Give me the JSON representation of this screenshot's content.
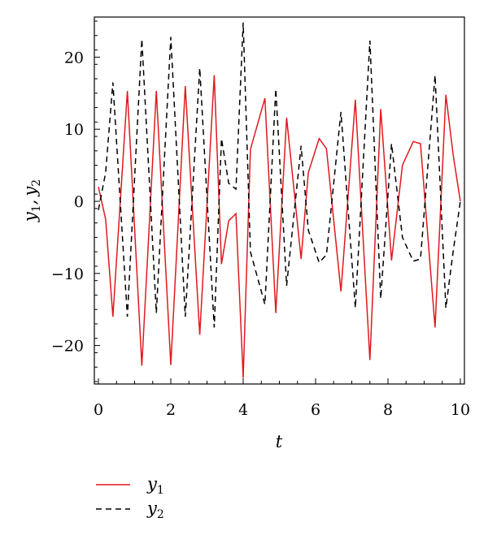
{
  "chart_data": {
    "type": "line",
    "title": "",
    "xlabel": "t",
    "ylabel": "y1, y2",
    "ylabel_parts": {
      "var1": "y",
      "sub1": "1",
      "sep": ",",
      "var2": "y",
      "sub2": "2"
    },
    "xlim": [
      0,
      10
    ],
    "ylim": [
      -25,
      25
    ],
    "x_ticks": [
      0,
      2,
      4,
      6,
      8,
      10
    ],
    "x_tick_labels": [
      "0",
      "2",
      "4",
      "6",
      "8",
      "10"
    ],
    "y_ticks": [
      20,
      10,
      0,
      -10,
      -20
    ],
    "y_tick_labels": [
      "20",
      "10",
      "0",
      "−10",
      "−20"
    ],
    "grid": false,
    "legend_position": "bottom-left",
    "series": [
      {
        "name": "y1",
        "legend_var": "y",
        "legend_sub": "1",
        "color": "#e0191e",
        "dash": "solid",
        "x": [
          0,
          0.2,
          0.4,
          0.8,
          1.2,
          1.6,
          2.0,
          2.4,
          2.8,
          3.2,
          3.4,
          3.6,
          3.8,
          4.0,
          4.2,
          4.6,
          4.9,
          5.2,
          5.6,
          5.8,
          6.1,
          6.3,
          6.7,
          7.1,
          7.5,
          7.8,
          8.1,
          8.4,
          8.7,
          8.9,
          9.3,
          9.6,
          9.8,
          10.0
        ],
        "y": [
          2,
          -2.5,
          -16,
          15.3,
          -22.8,
          15.3,
          -22.7,
          16,
          -18.5,
          17.5,
          -8.7,
          -2.7,
          -1.7,
          -24.5,
          7.2,
          14.3,
          -15.5,
          11.6,
          -8,
          4,
          8.7,
          7.3,
          -12.5,
          14.1,
          -22,
          12.8,
          -8.2,
          5,
          8.3,
          8,
          -17.5,
          14.8,
          6.5,
          0
        ]
      },
      {
        "name": "y2",
        "legend_var": "y",
        "legend_sub": "2",
        "color": "#000000",
        "dash": "dashed",
        "x": [
          0,
          0.2,
          0.4,
          0.8,
          1.2,
          1.6,
          2.0,
          2.4,
          2.8,
          3.2,
          3.4,
          3.6,
          3.8,
          4.0,
          4.2,
          4.6,
          4.9,
          5.2,
          5.6,
          5.8,
          6.1,
          6.3,
          6.7,
          7.1,
          7.5,
          7.8,
          8.1,
          8.4,
          8.7,
          8.9,
          9.3,
          9.6,
          9.8,
          10.0
        ],
        "y": [
          -1.2,
          4,
          16.5,
          -16,
          22.5,
          -15.5,
          22.8,
          -16,
          18.5,
          -17.5,
          8.7,
          2.5,
          1.7,
          24.8,
          -7,
          -14.3,
          15.6,
          -11.7,
          7.7,
          -4,
          -8.5,
          -7.4,
          12.4,
          -14.8,
          22.3,
          -13.5,
          8,
          -5,
          -8.3,
          -8,
          17.5,
          -14.8,
          -7,
          0
        ]
      }
    ]
  }
}
